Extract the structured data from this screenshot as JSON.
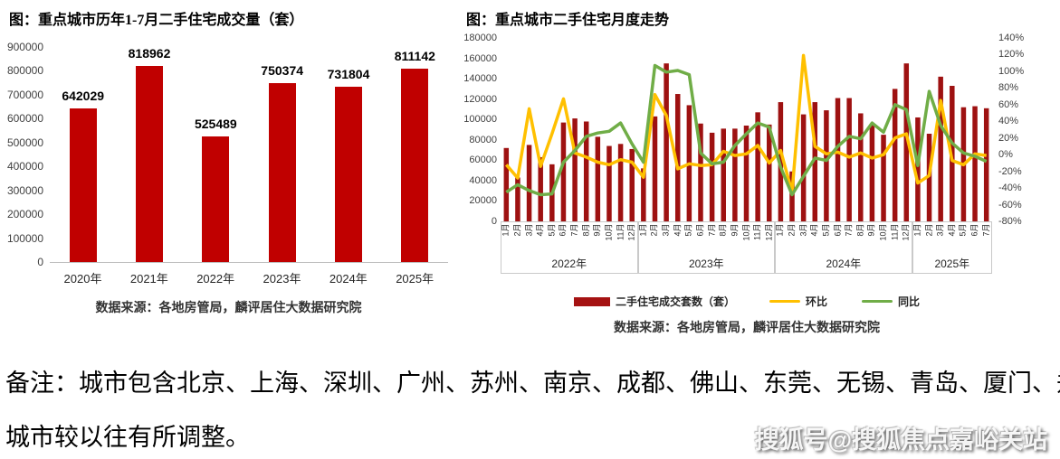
{
  "note": {
    "line1": "备注：城市包含北京、上海、深圳、广州、苏州、南京、成都、佛山、东莞、无锡、青岛、厦门、郑州，",
    "line2": "城市较以往有所调整。"
  },
  "watermark": "搜狐号@搜狐焦点嘉峪关站",
  "chart_data": [
    {
      "type": "bar",
      "title": "图：重点城市历年1-7月二手住宅成交量（套）",
      "categories": [
        "2020年",
        "2021年",
        "2022年",
        "2023年",
        "2024年",
        "2025年"
      ],
      "values": [
        642029,
        818962,
        525489,
        750374,
        731804,
        811142
      ],
      "value_labels": [
        "642029",
        "818962",
        "525489",
        "750374",
        "731804",
        "811142"
      ],
      "bar_color": "#c00000",
      "ylim": [
        0,
        900000
      ],
      "ytick_step": 100000,
      "grid": "off",
      "source": "数据来源：各地房管局，麟评居住大数据研究院"
    },
    {
      "type": "combo",
      "title": "图：重点城市二手住宅月度走势",
      "categories": [
        "1月",
        "2月",
        "3月",
        "4月",
        "5月",
        "6月",
        "7月",
        "8月",
        "9月",
        "10月",
        "11月",
        "12月",
        "1月",
        "2月",
        "3月",
        "4月",
        "5月",
        "6月",
        "7月",
        "8月",
        "9月",
        "10月",
        "11月",
        "12月",
        "1月",
        "2月",
        "3月",
        "4月",
        "5月",
        "6月",
        "7月",
        "8月",
        "9月",
        "10月",
        "11月",
        "12月",
        "1月",
        "2月",
        "3月",
        "4月",
        "5月",
        "6月",
        "7月"
      ],
      "year_groups": [
        {
          "label": "2022年",
          "months": 12
        },
        {
          "label": "2023年",
          "months": 12
        },
        {
          "label": "2024年",
          "months": 12
        },
        {
          "label": "2025年",
          "months": 7
        }
      ],
      "series": [
        {
          "name": "二手住宅成交套数（套）",
          "type": "bar",
          "axis": "left",
          "color": "#9e1111",
          "values": [
            72000,
            43000,
            75000,
            63000,
            56000,
            97000,
            101000,
            98000,
            83000,
            74000,
            76000,
            71000,
            52000,
            103000,
            155000,
            125000,
            114000,
            96000,
            87000,
            91000,
            91000,
            94000,
            107000,
            95000,
            117000,
            49000,
            105000,
            117000,
            109000,
            121000,
            121000,
            106000,
            95000,
            85000,
            130000,
            155000,
            102000,
            86000,
            142000,
            133000,
            112000,
            113000,
            111000
          ]
        },
        {
          "name": "环比",
          "type": "line",
          "axis": "right",
          "color": "#ffc000",
          "values": [
            -12,
            -28,
            55,
            -14,
            25,
            67,
            2,
            -3,
            -9,
            -12,
            -6,
            -9,
            -27,
            72,
            47,
            -17,
            -11,
            -13,
            -12,
            4,
            -1,
            1,
            11,
            -10,
            5,
            -45,
            119,
            10,
            1,
            3,
            -3,
            2,
            -4,
            0,
            20,
            25,
            -34,
            -25,
            65,
            -7,
            -12,
            1,
            -1
          ]
        },
        {
          "name": "同比",
          "type": "line",
          "axis": "right",
          "color": "#70ad47",
          "values": [
            -45,
            -36,
            -43,
            -48,
            -47,
            -9,
            5,
            22,
            26,
            28,
            38,
            13,
            -9,
            107,
            99,
            101,
            96,
            2,
            -11,
            -9,
            11,
            25,
            38,
            33,
            -15,
            -48,
            -26,
            -4,
            -7,
            10,
            22,
            19,
            38,
            27,
            60,
            54,
            -13,
            76,
            35,
            14,
            2,
            -2,
            -8
          ]
        }
      ],
      "left_axis": {
        "min": 0,
        "max": 180000,
        "tick_step": 20000
      },
      "right_axis": {
        "min": -80,
        "max": 140,
        "tick_step": 20,
        "suffix": "%"
      },
      "grid": "off",
      "legend_position": "bottom",
      "source": "数据来源：各地房管局，麟评居住大数据研究院"
    }
  ]
}
